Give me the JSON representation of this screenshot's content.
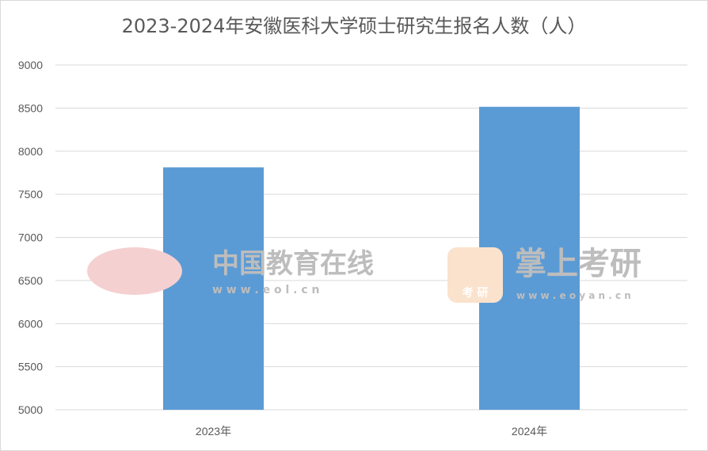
{
  "chart_data": {
    "type": "bar",
    "title": "2023-2024年安徽医科大学硕士研究生报名人数（人）",
    "categories": [
      "2023年",
      "2024年"
    ],
    "values": [
      7812,
      8515
    ],
    "xlabel": "",
    "ylabel": "",
    "ylim": [
      5000,
      9000
    ],
    "yticks": [
      5000,
      5500,
      6000,
      6500,
      7000,
      7500,
      8000,
      8500,
      9000
    ],
    "grid": true,
    "legend": "none",
    "bar_color": "#5b9bd5"
  },
  "watermarks": {
    "eol_name": "中国教育在线",
    "eol_url": "w w w . e o l . c n",
    "kaoyan_name": "掌上考研",
    "kaoyan_badge": "考 研",
    "kaoyan_url": "w w w . e o y a n . c n"
  }
}
